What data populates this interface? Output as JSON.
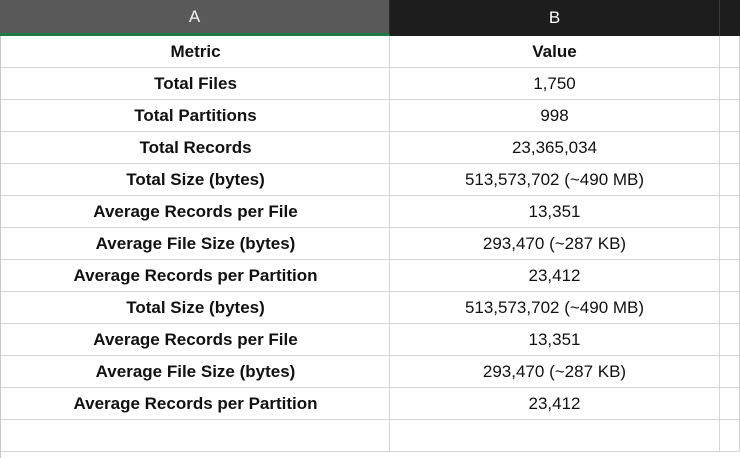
{
  "columns": [
    "A",
    "B"
  ],
  "table": {
    "header": [
      "Metric",
      "Value"
    ],
    "rows": [
      [
        "Total Files",
        "1,750"
      ],
      [
        "Total Partitions",
        "998"
      ],
      [
        "Total Records",
        "23,365,034"
      ],
      [
        "Total Size (bytes)",
        "513,573,702 (~490 MB)"
      ],
      [
        "Average Records per File",
        "13,351"
      ],
      [
        "Average File Size (bytes)",
        "293,470 (~287 KB)"
      ],
      [
        "Average Records per Partition",
        "23,412"
      ],
      [
        "Total Size (bytes)",
        "513,573,702 (~490 MB)"
      ],
      [
        "Average Records per File",
        "13,351"
      ],
      [
        "Average File Size (bytes)",
        "293,470 (~287 KB)"
      ],
      [
        "Average Records per Partition",
        "23,412"
      ],
      [
        "",
        ""
      ]
    ]
  }
}
